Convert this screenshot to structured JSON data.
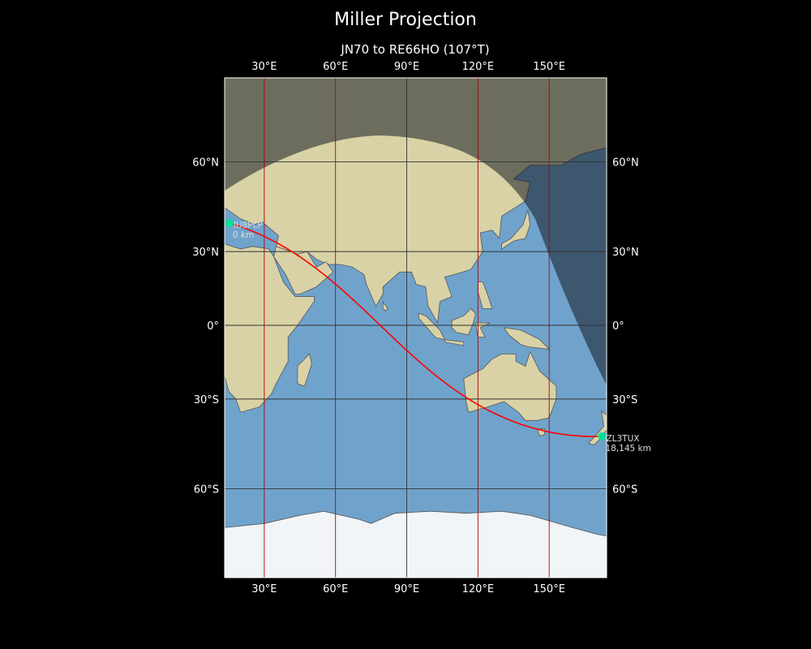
{
  "title": "Miller Projection",
  "subtitle": "JN70 to RE66HO (107°T)",
  "map": {
    "projection": "miller",
    "extent": {
      "lon": [
        13.3,
        174.2
      ],
      "lat": [
        -80,
        79.6
      ]
    },
    "lon_ticks": [
      {
        "value": 30,
        "label": "30°E"
      },
      {
        "value": 60,
        "label": "60°E"
      },
      {
        "value": 90,
        "label": "90°E"
      },
      {
        "value": 120,
        "label": "120°E"
      },
      {
        "value": 150,
        "label": "150°E"
      }
    ],
    "lat_ticks": [
      {
        "value": 60,
        "label": "60°N"
      },
      {
        "value": 30,
        "label": "30°N"
      },
      {
        "value": 0,
        "label": "0°"
      },
      {
        "value": -30,
        "label": "30°S"
      },
      {
        "value": -60,
        "label": "60°S"
      }
    ],
    "colors": {
      "ocean": "#6fa3cc",
      "land": "#d9d2a6",
      "ice": "#f2f5f8",
      "path": "#ff0000",
      "marker": "#00e09a",
      "grid_dark": "#333333",
      "grid_red": "#b00000",
      "night": "rgba(20,25,35,0.55)"
    },
    "stations": [
      {
        "call": "IU8PLP",
        "distance": "0 km",
        "lon": 15.3,
        "lat": 40.5
      },
      {
        "call": "ZL3TUX",
        "distance": "18,145 km",
        "lon": 172.3,
        "lat": -43.6
      }
    ]
  }
}
